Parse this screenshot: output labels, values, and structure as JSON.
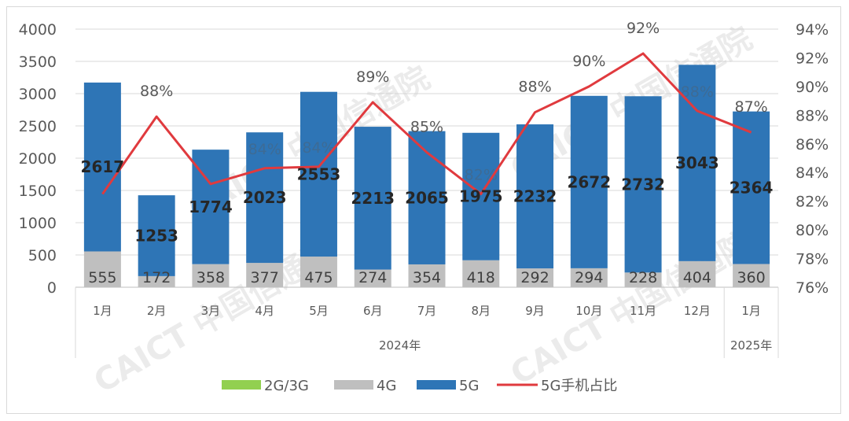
{
  "chart_data": {
    "type": "bar",
    "stacked": true,
    "categories": [
      "1月",
      "2月",
      "3月",
      "4月",
      "5月",
      "6月",
      "7月",
      "8月",
      "9月",
      "10月",
      "11月",
      "12月",
      "1月"
    ],
    "year_groups": [
      {
        "label": "2024年",
        "count": 12
      },
      {
        "label": "2025年",
        "count": 1
      }
    ],
    "series": [
      {
        "name": "2G/3G",
        "type": "bar",
        "color": "#92d050",
        "values": [
          0,
          0,
          0,
          0,
          0,
          0,
          0,
          0,
          0,
          0,
          0,
          0,
          0
        ]
      },
      {
        "name": "4G",
        "type": "bar",
        "color": "#bfbfbf",
        "values": [
          555,
          172,
          358,
          377,
          475,
          274,
          354,
          418,
          292,
          294,
          228,
          404,
          360
        ]
      },
      {
        "name": "5G",
        "type": "bar",
        "color": "#2e75b6",
        "values": [
          2617,
          1253,
          1774,
          2023,
          2553,
          2213,
          2065,
          1975,
          2232,
          2672,
          2732,
          3043,
          2364
        ]
      },
      {
        "name": "5G手机占比",
        "type": "line",
        "axis": "right",
        "color": "#e03a3e",
        "values": [
          82.5,
          87.9,
          83.2,
          84.3,
          84.4,
          88.9,
          85.4,
          82.5,
          88.2,
          90.0,
          92.3,
          88.3,
          86.8
        ]
      }
    ],
    "pct_labels": [
      "",
      "88%",
      "",
      "",
      "",
      "89%",
      "85%",
      "",
      "88%",
      "90%",
      "92%",
      "",
      "87%"
    ],
    "faint_pct_labels": [
      "",
      "",
      "",
      "84%",
      "84%",
      "",
      "",
      "82%",
      "",
      "",
      "",
      "88%",
      ""
    ],
    "y_left": {
      "min": 0,
      "max": 4000,
      "ticks": [
        "0",
        "500",
        "1000",
        "1500",
        "2000",
        "2500",
        "3000",
        "3500",
        "4000"
      ]
    },
    "y_right": {
      "min": 76,
      "max": 94,
      "ticks": [
        "76%",
        "78%",
        "80%",
        "82%",
        "84%",
        "86%",
        "88%",
        "90%",
        "92%",
        "94%"
      ]
    },
    "grid": true,
    "legend_position": "bottom"
  },
  "watermark": "CAICT 中国信通院"
}
